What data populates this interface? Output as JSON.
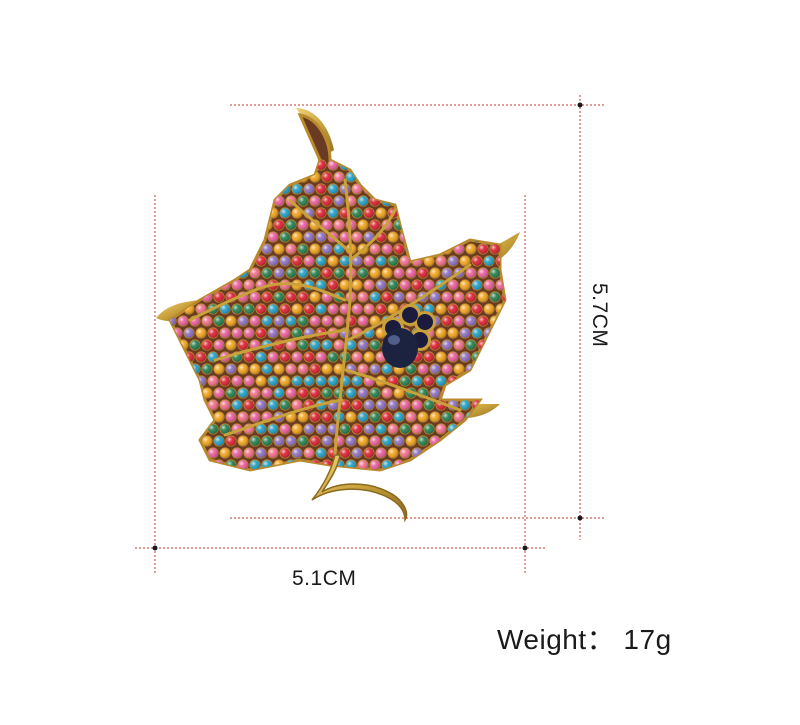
{
  "dimensions": {
    "width": "5.1CM",
    "height": "5.7CM"
  },
  "weight_text": "Weight：  17g",
  "colors": {
    "dimension_line": "#c0392b",
    "text": "#1a1a1a",
    "gold": "#c9a13b",
    "leaf_base": "#6b3a22",
    "gems": [
      "#d81b2c",
      "#1d9bc3",
      "#f2a21a",
      "#e85a9a",
      "#1f7a4a",
      "#8a6bbf",
      "#f06a8a"
    ]
  }
}
